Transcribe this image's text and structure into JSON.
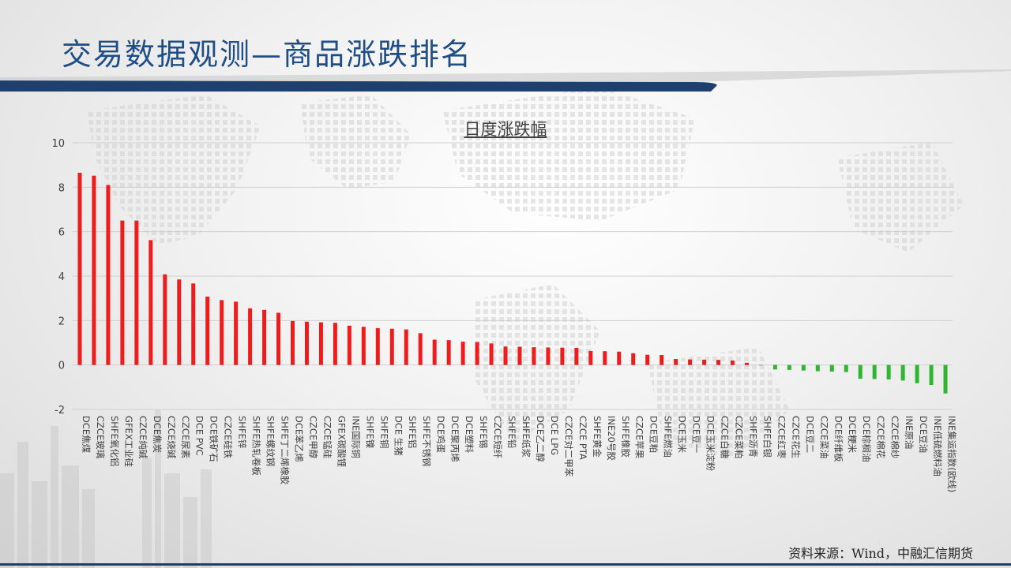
{
  "slide": {
    "title": "交易数据观测—商品涨跌排名",
    "source": "资料来源：Wind，中融汇信期货"
  },
  "colors": {
    "title": "#1f4e86",
    "header_band": "#1f3f6e",
    "up": "#ee1c1c",
    "down": "#2fb52f"
  },
  "chart_data": {
    "type": "bar",
    "title": "日度涨跌幅",
    "xlabel": "",
    "ylabel": "",
    "ylim": [
      -2,
      10
    ],
    "yticks": [
      -2,
      0,
      2,
      4,
      6,
      8,
      10
    ],
    "grid": true,
    "legend": "none",
    "categories": [
      "DCE焦煤",
      "CZCE玻璃",
      "SHFE氧化铝",
      "GFEX工业硅",
      "CZCE纯碱",
      "DCE焦炭",
      "CZCE烧碱",
      "CZCE尿素",
      "DCE PVC",
      "DCE铁矿石",
      "CZCE硅铁",
      "SHFE锌",
      "SHFE热轧卷板",
      "SHFE螺纹钢",
      "SHFE丁二烯橡胶",
      "DCE苯乙烯",
      "CZCE甲醇",
      "CZCE锰硅",
      "GFEX碳酸锂",
      "INE国际铜",
      "SHFE镍",
      "SHFE铜",
      "DCE 生猪",
      "SHFE铝",
      "SHFE不锈钢",
      "DCE鸡蛋",
      "DCE聚丙烯",
      "DCE塑料",
      "SHFE锡",
      "CZCE短纤",
      "SHFE铅",
      "SHFE纸浆",
      "DCE乙二醇",
      "DCE LPG",
      "CZCE对二甲苯",
      "CZCE PTA",
      "SHFE黄金",
      "INE20号胶",
      "SHFE橡胶",
      "CZCE苹果",
      "DCE豆粕",
      "SHFE燃油",
      "DCE玉米",
      "DCE豆一",
      "DCE玉米淀粉",
      "CZCE白糖",
      "CZCE菜粕",
      "SHFE沥青",
      "SHFE白银",
      "CZCE红枣",
      "CZCE花生",
      "DCE豆二",
      "CZCE菜油",
      "DCE纤维板",
      "DCE粳米",
      "DCE棕榈油",
      "CZCE棉花",
      "CZCE棉纱",
      "INE原油",
      "DCE豆油",
      "INE低硫燃料油",
      "INE集运指数(欧线)"
    ],
    "values": [
      8.65,
      8.52,
      8.1,
      6.5,
      6.5,
      5.62,
      4.08,
      3.85,
      3.67,
      3.08,
      2.92,
      2.85,
      2.55,
      2.48,
      2.35,
      1.98,
      1.95,
      1.92,
      1.9,
      1.77,
      1.72,
      1.66,
      1.63,
      1.6,
      1.43,
      1.14,
      1.12,
      1.05,
      1.03,
      0.97,
      0.83,
      0.82,
      0.8,
      0.79,
      0.78,
      0.77,
      0.63,
      0.62,
      0.6,
      0.53,
      0.46,
      0.45,
      0.27,
      0.25,
      0.24,
      0.23,
      0.2,
      0.1,
      -0.02,
      -0.2,
      -0.22,
      -0.25,
      -0.28,
      -0.3,
      -0.32,
      -0.62,
      -0.63,
      -0.65,
      -0.7,
      -0.82,
      -0.9,
      -1.28
    ]
  }
}
